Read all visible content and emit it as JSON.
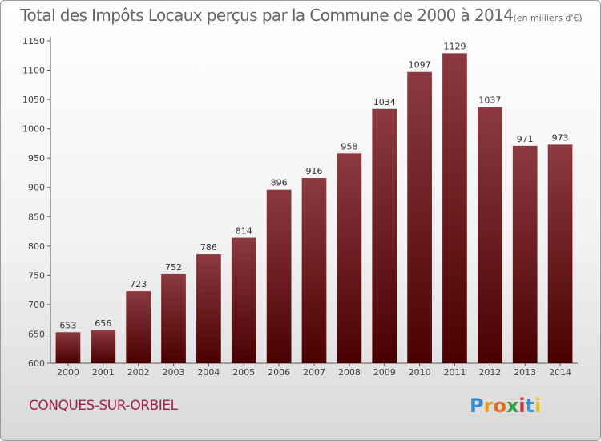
{
  "header": {
    "title": "Total des Impôts Locaux perçus par la Commune de 2000 à 2014",
    "unit": "(en milliers d'€)"
  },
  "footer": {
    "commune": "CONQUES-SUR-ORBIEL",
    "logo": [
      "P",
      "r",
      "o",
      "x",
      "i",
      "t",
      "i"
    ]
  },
  "colors": {
    "bar_top": "#8c3a40",
    "bar_bottom": "#4a0000",
    "commune": "#a02050",
    "logo": [
      "#3a8fd0",
      "#e8a020",
      "#e07020",
      "#30a040",
      "#d03030",
      "#3a8fd0",
      "#e8c020"
    ]
  },
  "chart_data": {
    "type": "bar",
    "title": "Total des Impôts Locaux perçus par la Commune de 2000 à 2014",
    "xlabel": "",
    "ylabel": "",
    "categories": [
      "2000",
      "2001",
      "2002",
      "2003",
      "2004",
      "2005",
      "2006",
      "2007",
      "2008",
      "2009",
      "2010",
      "2011",
      "2012",
      "2013",
      "2014"
    ],
    "values": [
      653,
      656,
      723,
      752,
      786,
      814,
      896,
      916,
      958,
      1034,
      1097,
      1129,
      1037,
      971,
      973
    ],
    "ylim": [
      600,
      1150
    ],
    "yticks": [
      600,
      650,
      700,
      750,
      800,
      850,
      900,
      950,
      1000,
      1050,
      1100,
      1150
    ],
    "grid": false,
    "legend": "none"
  }
}
